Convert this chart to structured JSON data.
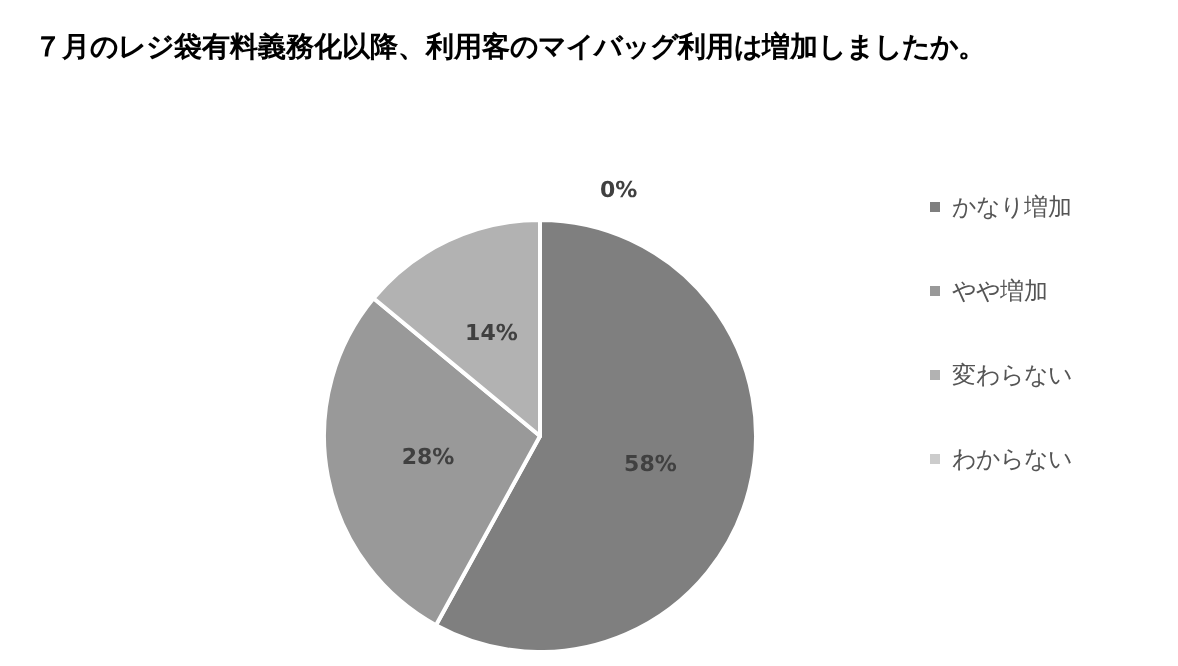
{
  "chart_data": {
    "type": "pie",
    "title": "７月のレジ袋有料義務化以降、利用客のマイバッグ利用は増加しましたか。",
    "categories": [
      "かなり増加",
      "やや増加",
      "変わらない",
      "わからない"
    ],
    "values": [
      58,
      28,
      14,
      0
    ],
    "colors": [
      "#7f7f7f",
      "#999999",
      "#b2b2b2",
      "#cccccc"
    ],
    "value_labels": [
      "58%",
      "28%",
      "14%",
      "0%"
    ],
    "legend": "right"
  }
}
